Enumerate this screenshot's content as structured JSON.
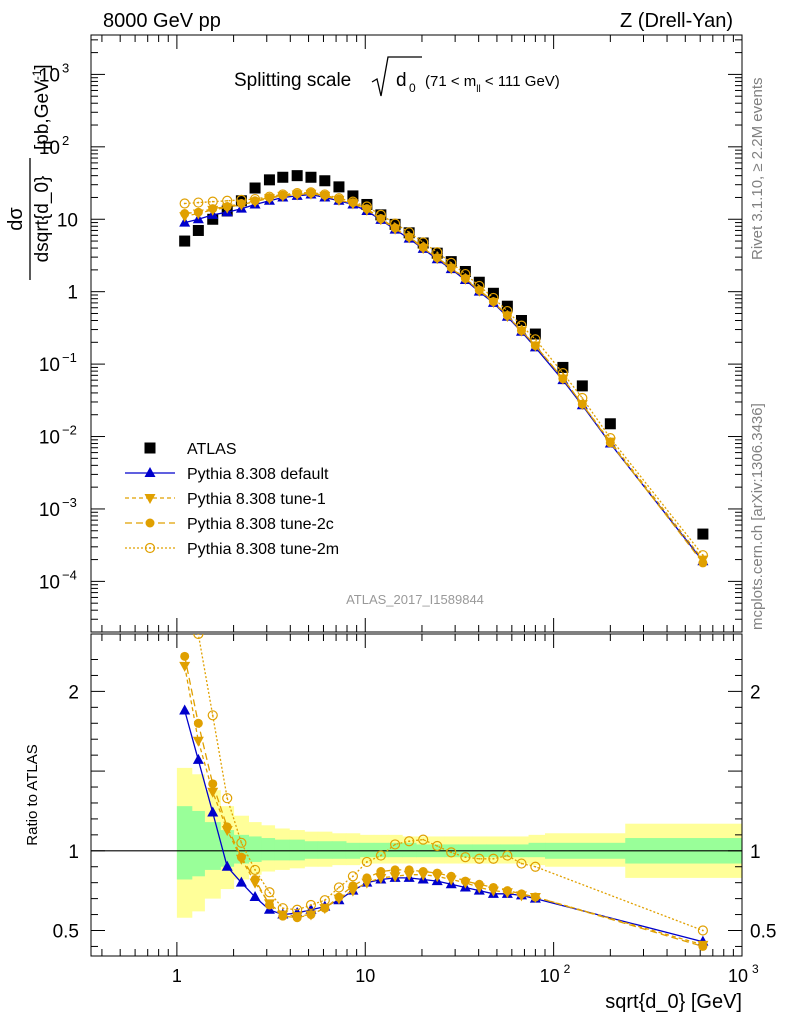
{
  "header": {
    "left": "8000 GeV pp",
    "right": "Z (Drell-Yan)"
  },
  "side_text": {
    "rivet": "Rivet 3.1.10, ≥ 2.2M events",
    "mcplots": "mcplots.cern.ch [arXiv:1306.3436]"
  },
  "plot_title": {
    "prefix": "Splitting scale",
    "symbol": "d",
    "subscript": "0",
    "range": "(71 < m",
    "range_sub": "ll",
    "range_end": " < 111 GeV)"
  },
  "analysis_id": "ATLAS_2017_I1589844",
  "colors": {
    "atlas": "#000000",
    "default": "#0000cc",
    "tune": "#e0a000",
    "band_inner": "#99ff99",
    "band_outer": "#ffff99"
  },
  "chart_data": [
    {
      "type": "scatter",
      "panel": "main",
      "log_x": true,
      "log_y": true,
      "xlim": [
        0.35,
        1000
      ],
      "ylim": [
        2e-05,
        3500
      ],
      "ylabel_num": "dσ",
      "ylabel_den": "dsqrt{d_0}",
      "ylabel_unit": "[pb,GeV",
      "ylabel_unit_sup": "-1",
      "ylabel_unit_end": "]",
      "x_ticks": [],
      "y_ticks": [
        {
          "v": 1000,
          "base": "10",
          "exp": "3"
        },
        {
          "v": 100,
          "base": "10",
          "exp": "2"
        },
        {
          "v": 10,
          "base": "10",
          "exp": ""
        },
        {
          "v": 1,
          "base": "1",
          "exp": ""
        },
        {
          "v": 0.1,
          "base": "10",
          "exp": "−1"
        },
        {
          "v": 0.01,
          "base": "10",
          "exp": "−2"
        },
        {
          "v": 0.001,
          "base": "10",
          "exp": "−3"
        },
        {
          "v": 0.0001,
          "base": "10",
          "exp": "−4"
        }
      ],
      "legend": [
        {
          "label": "ATLAS",
          "key": "atlas"
        },
        {
          "label": "Pythia 8.308 default",
          "key": "default"
        },
        {
          "label": "Pythia 8.308 tune-1",
          "key": "tune1"
        },
        {
          "label": "Pythia 8.308 tune-2c",
          "key": "tune2c"
        },
        {
          "label": "Pythia 8.308 tune-2m",
          "key": "tune2m"
        }
      ],
      "series": [
        {
          "name": "ATLAS",
          "key": "atlas",
          "x": [
            1.1,
            1.3,
            1.55,
            1.85,
            2.2,
            2.6,
            3.1,
            3.65,
            4.35,
            5.15,
            6.1,
            7.25,
            8.6,
            10.2,
            12.1,
            14.4,
            17.1,
            20.3,
            24.1,
            28.6,
            34,
            40.3,
            47.9,
            56.8,
            67.5,
            80,
            112,
            142,
            200,
            620
          ],
          "y": [
            5,
            7,
            10,
            13,
            18,
            27,
            35,
            38,
            40,
            38,
            34,
            28,
            21,
            16,
            11.5,
            8.5,
            6.5,
            4.7,
            3.4,
            2.6,
            1.9,
            1.35,
            0.95,
            0.63,
            0.4,
            0.26,
            0.09,
            0.05,
            0.015,
            0.00045
          ]
        },
        {
          "name": "Pythia 8.308 default",
          "key": "default",
          "x": [
            1.1,
            1.3,
            1.55,
            1.85,
            2.2,
            2.6,
            3.1,
            3.65,
            4.35,
            5.15,
            6.1,
            7.25,
            8.6,
            10.2,
            12.1,
            14.4,
            17.1,
            20.3,
            24.1,
            28.6,
            34,
            40.3,
            47.9,
            56.8,
            67.5,
            80,
            112,
            142,
            200,
            620
          ],
          "y": [
            9,
            10,
            11.5,
            12.5,
            14,
            16,
            18,
            20,
            21,
            22,
            20,
            18,
            16,
            13,
            9.8,
            7.2,
            5.4,
            3.9,
            2.8,
            2.05,
            1.45,
            1.0,
            0.7,
            0.45,
            0.28,
            0.17,
            0.06,
            0.027,
            0.008,
            0.00019
          ]
        },
        {
          "name": "Pythia 8.308 tune-1",
          "key": "tune1",
          "x": [
            1.1,
            1.3,
            1.55,
            1.85,
            2.2,
            2.6,
            3.1,
            3.65,
            4.35,
            5.15,
            6.1,
            7.25,
            8.6,
            10.2,
            12.1,
            14.4,
            17.1,
            20.3,
            24.1,
            28.6,
            34,
            40.3,
            47.9,
            56.8,
            67.5,
            80,
            112,
            142,
            200,
            620
          ],
          "y": [
            11,
            12,
            13.5,
            14.5,
            16,
            17.5,
            19.5,
            21,
            22,
            22.5,
            21,
            18.5,
            16.5,
            13.5,
            10,
            7.4,
            5.6,
            4.0,
            2.9,
            2.1,
            1.5,
            1.03,
            0.72,
            0.46,
            0.29,
            0.18,
            0.063,
            0.028,
            0.0085,
            0.0002
          ]
        },
        {
          "name": "Pythia 8.308 tune-2c",
          "key": "tune2c",
          "x": [
            1.1,
            1.3,
            1.55,
            1.85,
            2.2,
            2.6,
            3.1,
            3.65,
            4.35,
            5.15,
            6.1,
            7.25,
            8.6,
            10.2,
            12.1,
            14.4,
            17.1,
            20.3,
            24.1,
            28.6,
            34,
            40.3,
            47.9,
            56.8,
            67.5,
            80,
            112,
            142,
            200,
            620
          ],
          "y": [
            12,
            12.5,
            14,
            15,
            16.5,
            18,
            20,
            21.5,
            22.5,
            23,
            21.5,
            19,
            17,
            14,
            10.2,
            7.6,
            5.7,
            4.1,
            2.95,
            2.15,
            1.52,
            1.05,
            0.73,
            0.47,
            0.29,
            0.18,
            0.063,
            0.028,
            0.0082,
            0.00018
          ]
        },
        {
          "name": "Pythia 8.308 tune-2m",
          "key": "tune2m",
          "x": [
            1.1,
            1.3,
            1.55,
            1.85,
            2.2,
            2.6,
            3.1,
            3.65,
            4.35,
            5.15,
            6.1,
            7.25,
            8.6,
            10.2,
            12.1,
            14.4,
            17.1,
            20.3,
            24.1,
            28.6,
            34,
            40.3,
            47.9,
            56.8,
            67.5,
            80,
            112,
            142,
            200,
            620
          ],
          "y": [
            16.5,
            17,
            17.5,
            18,
            18.5,
            19,
            20.5,
            22,
            23,
            23.5,
            22,
            19.5,
            17.5,
            15,
            11.5,
            8.7,
            6.6,
            4.8,
            3.5,
            2.5,
            1.75,
            1.2,
            0.82,
            0.54,
            0.34,
            0.22,
            0.075,
            0.034,
            0.0095,
            0.00023
          ]
        }
      ]
    },
    {
      "type": "line",
      "panel": "ratio",
      "log_x": true,
      "xlim": [
        0.35,
        1000
      ],
      "ylim": [
        0.34,
        2.36
      ],
      "ylabel": "Ratio to ATLAS",
      "xlabel": "sqrt{d_0} [GeV]",
      "x_ticks": [
        {
          "v": 1,
          "base": "1",
          "exp": ""
        },
        {
          "v": 10,
          "base": "10",
          "exp": ""
        },
        {
          "v": 100,
          "base": "10",
          "exp": "2"
        },
        {
          "v": 1000,
          "base": "10",
          "exp": "3"
        }
      ],
      "y_ticks": [
        {
          "v": 0.5,
          "label": "0.5"
        },
        {
          "v": 1,
          "label": "1"
        },
        {
          "v": 2,
          "label": "2"
        }
      ],
      "band_edges": [
        1.0,
        1.2,
        1.4,
        1.7,
        2.0,
        2.4,
        2.8,
        3.3,
        3.95,
        4.75,
        5.6,
        6.65,
        7.9,
        9.35,
        11.1,
        13.2,
        15.7,
        18.6,
        22.2,
        26.3,
        31.2,
        37.1,
        44,
        52.2,
        62,
        73.6,
        90,
        240,
        1000
      ],
      "band_inner": [
        [
          0.82,
          1.28
        ],
        [
          0.84,
          1.25
        ],
        [
          0.88,
          1.18
        ],
        [
          0.9,
          1.13
        ],
        [
          0.92,
          1.1
        ],
        [
          0.93,
          1.09
        ],
        [
          0.94,
          1.08
        ],
        [
          0.94,
          1.07
        ],
        [
          0.94,
          1.07
        ],
        [
          0.95,
          1.06
        ],
        [
          0.95,
          1.06
        ],
        [
          0.95,
          1.06
        ],
        [
          0.95,
          1.05
        ],
        [
          0.96,
          1.05
        ],
        [
          0.96,
          1.05
        ],
        [
          0.96,
          1.05
        ],
        [
          0.96,
          1.05
        ],
        [
          0.96,
          1.04
        ],
        [
          0.96,
          1.04
        ],
        [
          0.96,
          1.04
        ],
        [
          0.96,
          1.04
        ],
        [
          0.96,
          1.04
        ],
        [
          0.96,
          1.04
        ],
        [
          0.96,
          1.04
        ],
        [
          0.96,
          1.04
        ],
        [
          0.96,
          1.05
        ],
        [
          0.95,
          1.05
        ],
        [
          0.92,
          1.08
        ]
      ],
      "band_outer": [
        [
          0.58,
          1.52
        ],
        [
          0.62,
          1.48
        ],
        [
          0.7,
          1.38
        ],
        [
          0.76,
          1.28
        ],
        [
          0.82,
          1.22
        ],
        [
          0.85,
          1.18
        ],
        [
          0.87,
          1.16
        ],
        [
          0.88,
          1.14
        ],
        [
          0.89,
          1.13
        ],
        [
          0.9,
          1.12
        ],
        [
          0.9,
          1.12
        ],
        [
          0.91,
          1.11
        ],
        [
          0.91,
          1.11
        ],
        [
          0.92,
          1.1
        ],
        [
          0.92,
          1.1
        ],
        [
          0.92,
          1.1
        ],
        [
          0.92,
          1.09
        ],
        [
          0.92,
          1.09
        ],
        [
          0.92,
          1.09
        ],
        [
          0.92,
          1.09
        ],
        [
          0.92,
          1.09
        ],
        [
          0.92,
          1.09
        ],
        [
          0.92,
          1.09
        ],
        [
          0.92,
          1.09
        ],
        [
          0.92,
          1.09
        ],
        [
          0.91,
          1.1
        ],
        [
          0.9,
          1.11
        ],
        [
          0.83,
          1.17
        ]
      ],
      "series": [
        {
          "name": "Pythia 8.308 default",
          "key": "default",
          "x": [
            1.1,
            1.3,
            1.55,
            1.85,
            2.2,
            2.6,
            3.1,
            3.65,
            4.35,
            5.15,
            6.1,
            7.25,
            8.6,
            10.2,
            12.1,
            14.4,
            17.1,
            20.3,
            24.1,
            28.6,
            34,
            40.3,
            47.9,
            56.8,
            67.5,
            80,
            620
          ],
          "y": [
            1.88,
            1.57,
            1.24,
            0.9,
            0.8,
            0.71,
            0.63,
            0.6,
            0.61,
            0.63,
            0.65,
            0.69,
            0.75,
            0.8,
            0.82,
            0.83,
            0.83,
            0.82,
            0.81,
            0.79,
            0.77,
            0.75,
            0.73,
            0.73,
            0.72,
            0.7,
            0.43
          ]
        },
        {
          "name": "Pythia 8.308 tune-1",
          "key": "tune1",
          "x": [
            1.1,
            1.3,
            1.55,
            1.85,
            2.2,
            2.6,
            3.1,
            3.65,
            4.35,
            5.15,
            6.1,
            7.25,
            8.6,
            10.2,
            12.1,
            14.4,
            17.1,
            20.3,
            24.1,
            28.6,
            34,
            40.3,
            47.9,
            56.8,
            67.5,
            80,
            620
          ],
          "y": [
            2.16,
            1.69,
            1.37,
            1.13,
            0.95,
            0.8,
            0.67,
            0.6,
            0.59,
            0.6,
            0.64,
            0.7,
            0.75,
            0.8,
            0.83,
            0.84,
            0.85,
            0.85,
            0.84,
            0.82,
            0.8,
            0.77,
            0.75,
            0.74,
            0.72,
            0.71,
            0.41
          ]
        },
        {
          "name": "Pythia 8.308 tune-2c",
          "key": "tune2c",
          "x": [
            1.1,
            1.3,
            1.55,
            1.85,
            2.2,
            2.6,
            3.1,
            3.65,
            4.35,
            5.15,
            6.1,
            7.25,
            8.6,
            10.2,
            12.1,
            14.4,
            17.1,
            20.3,
            24.1,
            28.6,
            34,
            40.3,
            47.9,
            56.8,
            67.5,
            80,
            620
          ],
          "y": [
            2.22,
            1.8,
            1.42,
            1.15,
            0.96,
            0.82,
            0.66,
            0.59,
            0.58,
            0.6,
            0.64,
            0.71,
            0.78,
            0.83,
            0.87,
            0.88,
            0.88,
            0.87,
            0.86,
            0.84,
            0.81,
            0.79,
            0.77,
            0.75,
            0.73,
            0.71,
            0.4
          ]
        },
        {
          "name": "Pythia 8.308 tune-2m",
          "key": "tune2m",
          "x": [
            1.1,
            1.3,
            1.55,
            1.85,
            2.2,
            2.6,
            3.1,
            3.65,
            4.35,
            5.15,
            6.1,
            7.25,
            8.6,
            10.2,
            12.1,
            14.4,
            17.1,
            20.3,
            24.1,
            28.6,
            34,
            40.3,
            47.9,
            56.8,
            67.5,
            80,
            620
          ],
          "y": [
            2.55,
            2.36,
            1.85,
            1.33,
            1.05,
            0.88,
            0.74,
            0.64,
            0.63,
            0.66,
            0.69,
            0.77,
            0.84,
            0.93,
            0.97,
            1.04,
            1.06,
            1.07,
            1.03,
            0.99,
            0.96,
            0.95,
            0.95,
            0.97,
            0.92,
            0.9,
            0.5
          ]
        }
      ]
    }
  ]
}
